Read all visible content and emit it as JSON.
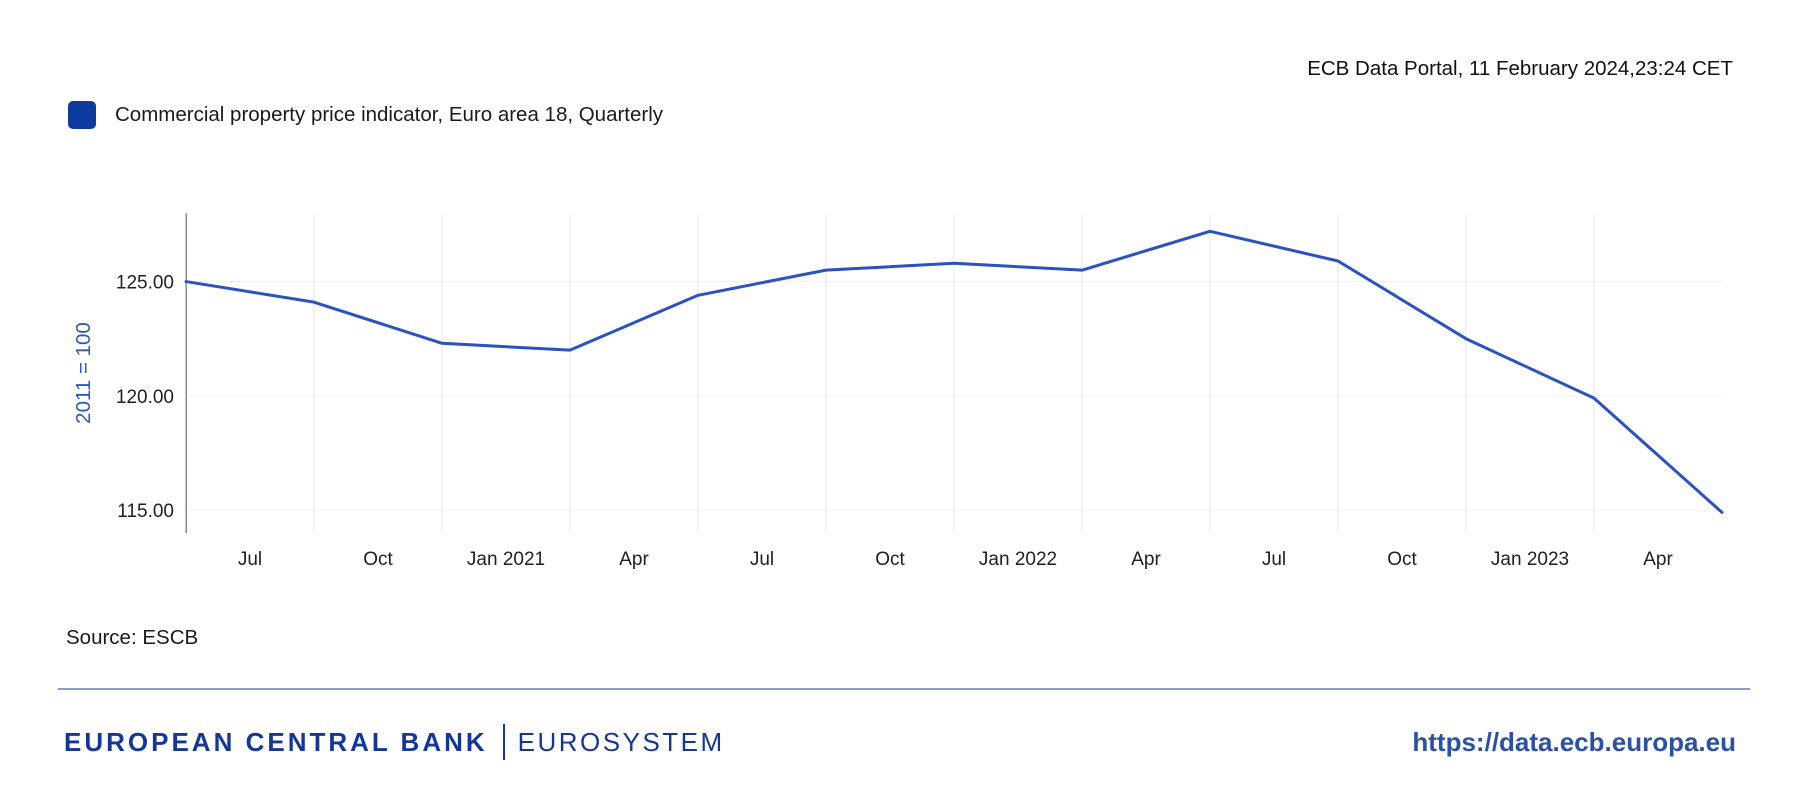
{
  "header": {
    "portal_stamp": "ECB Data Portal, 11 February 2024,23:24 CET"
  },
  "legend": {
    "label": "Commercial property price indicator, Euro area 18, Quarterly"
  },
  "source": {
    "text": "Source: ESCB"
  },
  "footer": {
    "bank_name": "EUROPEAN CENTRAL BANK",
    "system_name": "EUROSYSTEM",
    "url": "https://data.ecb.europa.eu"
  },
  "colors": {
    "legend_square": "#0d3a9e",
    "line": "#2a52c0",
    "axis_title_blue": "#2b5bc0",
    "tick_text": "#1f1f1f",
    "grid_vertical": "#e4e4e4",
    "grid_horizontal": "#f0f0f0",
    "axis_line": "#8c8c8c",
    "divider": "#84a0c9",
    "brand_blue": "#14369a",
    "url_blue": "#2b51a5"
  },
  "chart_data": {
    "type": "line",
    "series": [
      {
        "name": "Commercial property price indicator, Euro area 18, Quarterly",
        "values": [
          125.0,
          124.1,
          122.3,
          122.0,
          124.4,
          125.5,
          125.8,
          125.5,
          127.2,
          125.9,
          122.5,
          119.9,
          114.9
        ]
      }
    ],
    "x_tick_labels": [
      "Jul",
      "Oct",
      "Jan 2021",
      "Apr",
      "Jul",
      "Oct",
      "Jan 2022",
      "Apr",
      "Jul",
      "Oct",
      "Jan 2023",
      "Apr"
    ],
    "x_layout_hint": "quarterly data points sit on vertical gridlines; tick labels are centered half a step left of each gridline; first point (one quarter before first label) is unlabeled",
    "ylabel": "2011 = 100",
    "ylim": [
      114,
      128
    ],
    "ytick_values": [
      115,
      120,
      125
    ],
    "ytick_labels": [
      "115.00",
      "120.00",
      "125.00"
    ],
    "grid": true,
    "legend_position": "top-left"
  }
}
